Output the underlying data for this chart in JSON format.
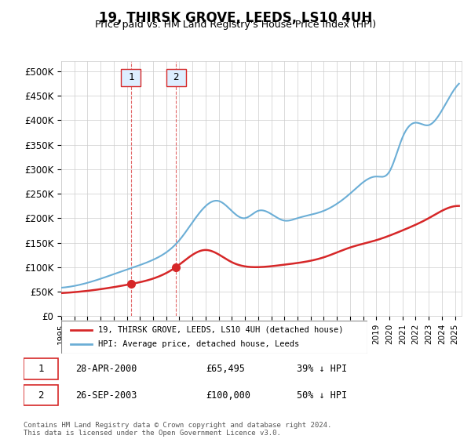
{
  "title": "19, THIRSK GROVE, LEEDS, LS10 4UH",
  "subtitle": "Price paid vs. HM Land Registry's House Price Index (HPI)",
  "hpi_label": "HPI: Average price, detached house, Leeds",
  "property_label": "19, THIRSK GROVE, LEEDS, LS10 4UH (detached house)",
  "ylabel_prefix": "£",
  "yticks": [
    0,
    50000,
    100000,
    150000,
    200000,
    250000,
    300000,
    350000,
    400000,
    450000,
    500000
  ],
  "ytick_labels": [
    "£0",
    "£50K",
    "£100K",
    "£150K",
    "£200K",
    "£250K",
    "£300K",
    "£350K",
    "£400K",
    "£450K",
    "£500K"
  ],
  "xmin": 1995.0,
  "xmax": 2025.5,
  "ymin": 0,
  "ymax": 520000,
  "transaction1_x": 2000.32,
  "transaction1_y": 65495,
  "transaction1_label": "1",
  "transaction1_date": "28-APR-2000",
  "transaction1_price": "£65,495",
  "transaction1_hpi": "39% ↓ HPI",
  "transaction2_x": 2003.74,
  "transaction2_y": 100000,
  "transaction2_label": "2",
  "transaction2_date": "26-SEP-2003",
  "transaction2_price": "£100,000",
  "transaction2_hpi": "50% ↓ HPI",
  "hpi_color": "#6baed6",
  "property_color": "#d62728",
  "annotation_box_color": "#d62728",
  "annotation_fill_color": "#ddeeff",
  "grid_color": "#cccccc",
  "footnote": "Contains HM Land Registry data © Crown copyright and database right 2024.\nThis data is licensed under the Open Government Licence v3.0.",
  "xtick_years": [
    1995,
    1996,
    1997,
    1998,
    1999,
    2000,
    2001,
    2002,
    2003,
    2004,
    2005,
    2006,
    2007,
    2008,
    2009,
    2010,
    2011,
    2012,
    2013,
    2014,
    2015,
    2016,
    2017,
    2018,
    2019,
    2020,
    2021,
    2022,
    2023,
    2024,
    2025
  ]
}
